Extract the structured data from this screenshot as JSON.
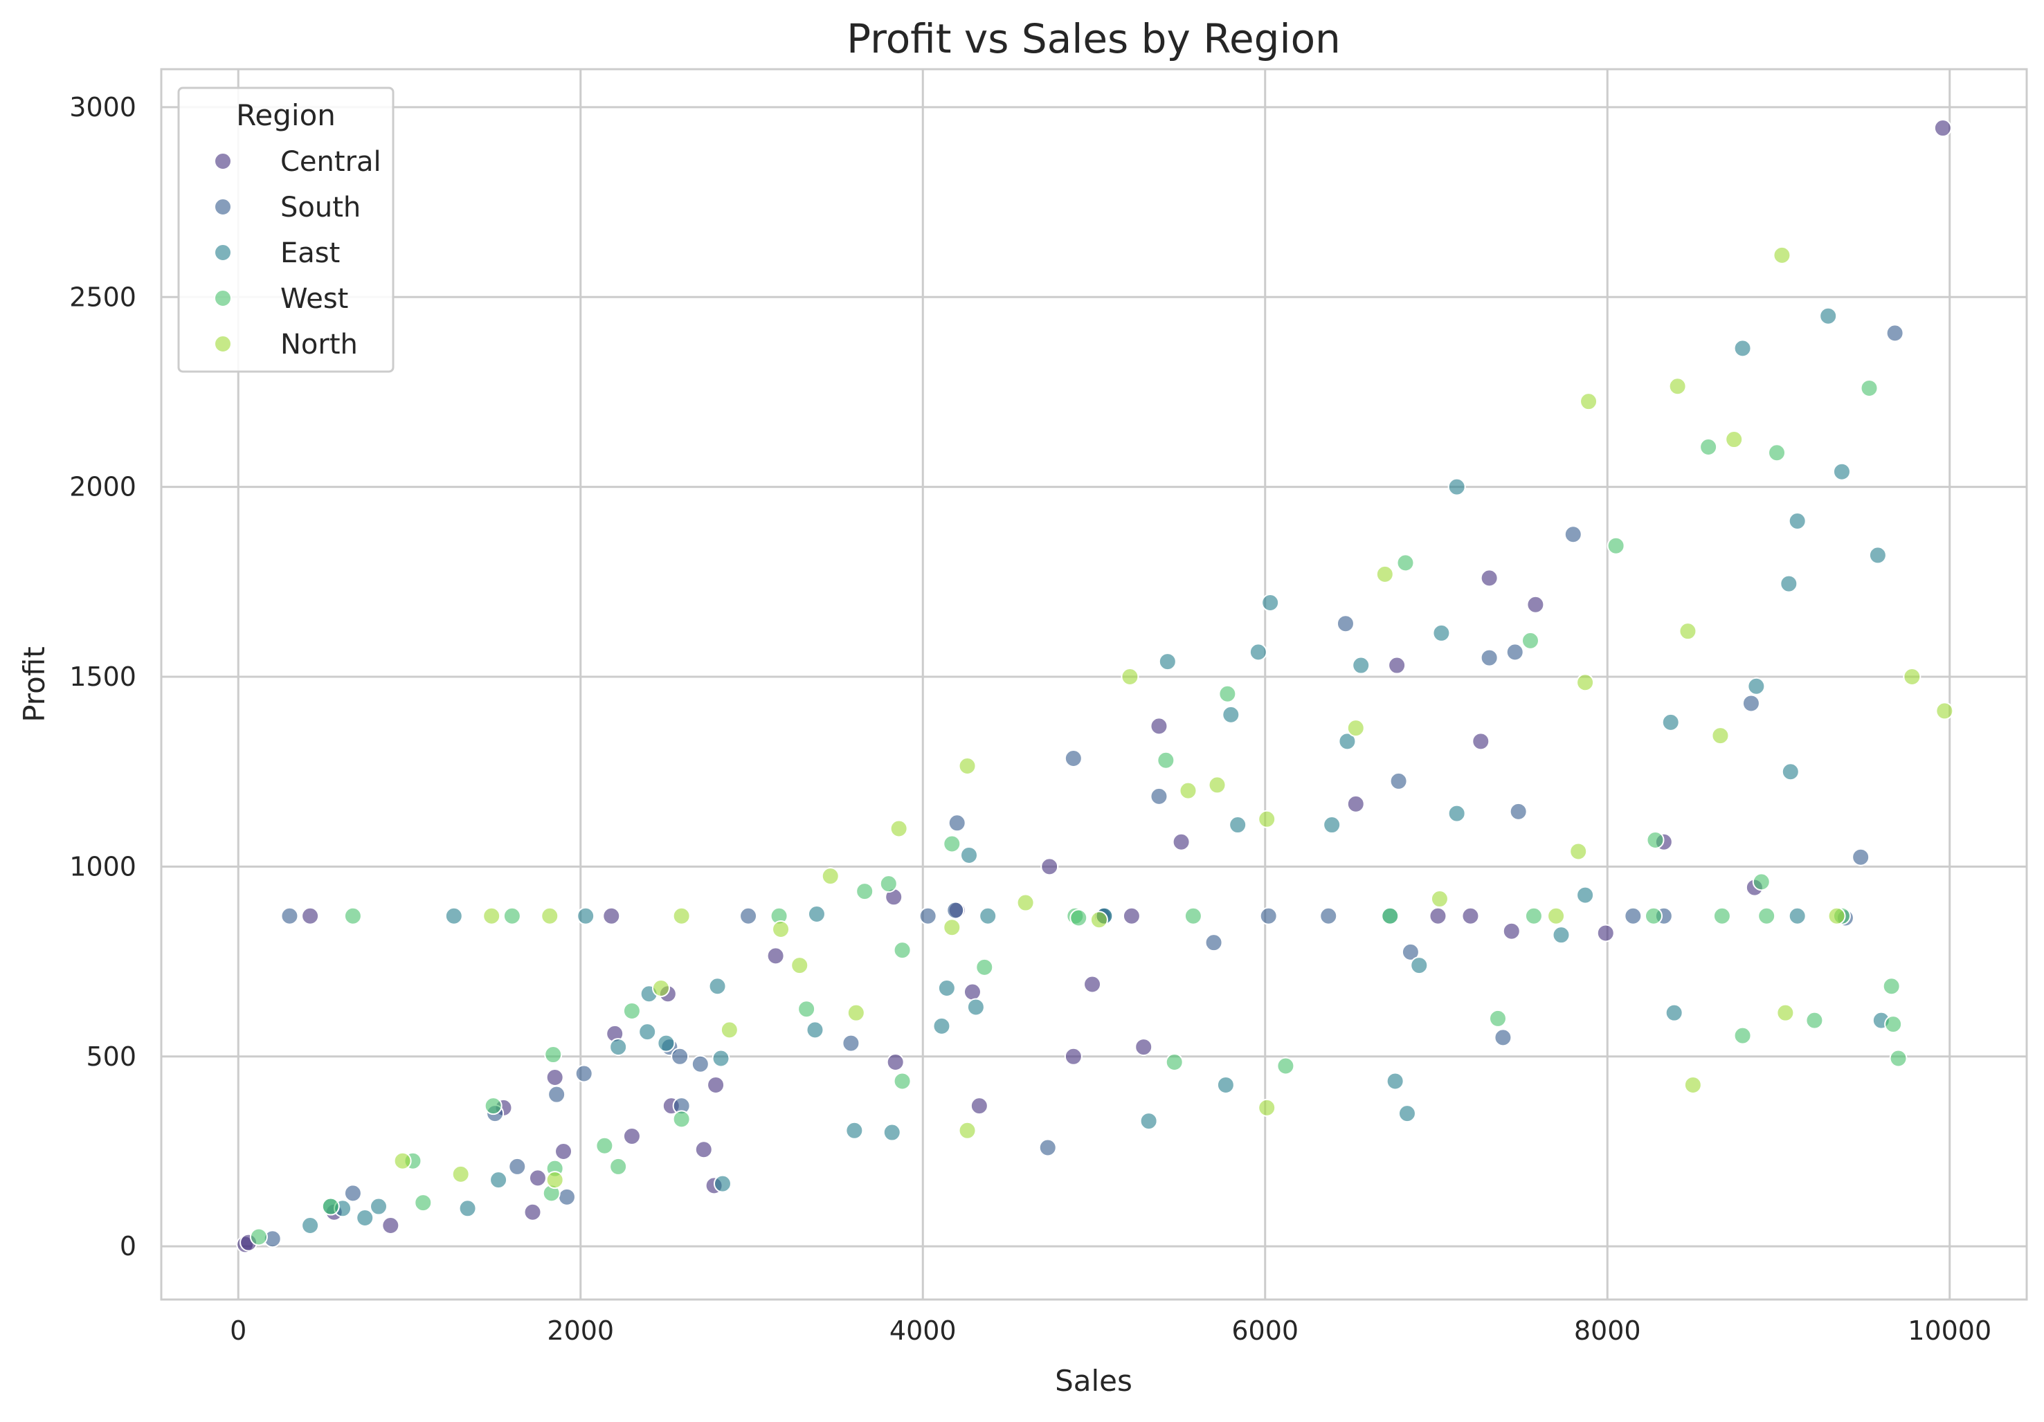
{
  "chart_data": {
    "type": "scatter",
    "title": "Profit vs Sales by Region",
    "xlabel": "Sales",
    "ylabel": "Profit",
    "xlim": [
      -450,
      10450
    ],
    "ylim": [
      -140,
      3100
    ],
    "xticks": [
      0,
      2000,
      4000,
      6000,
      8000,
      10000
    ],
    "yticks": [
      0,
      500,
      1000,
      1500,
      2000,
      2500,
      3000
    ],
    "grid": true,
    "legend": {
      "title": "Region",
      "placement": "top-left"
    },
    "series": [
      {
        "name": "Central",
        "color": "#46327e",
        "points": [
          [
            40,
            5
          ],
          [
            60,
            10
          ],
          [
            420,
            870
          ],
          [
            560,
            90
          ],
          [
            890,
            55
          ],
          [
            1550,
            365
          ],
          [
            1750,
            180
          ],
          [
            1720,
            90
          ],
          [
            1850,
            445
          ],
          [
            1900,
            250
          ],
          [
            2180,
            870
          ],
          [
            2200,
            560
          ],
          [
            2300,
            290
          ],
          [
            2510,
            665
          ],
          [
            2530,
            370
          ],
          [
            2720,
            255
          ],
          [
            2780,
            160
          ],
          [
            2790,
            425
          ],
          [
            3140,
            765
          ],
          [
            3830,
            920
          ],
          [
            3840,
            485
          ],
          [
            4200,
            885
          ],
          [
            4290,
            670
          ],
          [
            4330,
            370
          ],
          [
            4740,
            1000
          ],
          [
            4880,
            500
          ],
          [
            4990,
            690
          ],
          [
            5050,
            870
          ],
          [
            5220,
            870
          ],
          [
            5290,
            525
          ],
          [
            5380,
            1370
          ],
          [
            5510,
            1065
          ],
          [
            6530,
            1165
          ],
          [
            6770,
            1530
          ],
          [
            7010,
            870
          ],
          [
            7200,
            870
          ],
          [
            7260,
            1330
          ],
          [
            7310,
            1760
          ],
          [
            7440,
            830
          ],
          [
            7580,
            1690
          ],
          [
            7990,
            825
          ],
          [
            8330,
            1065
          ],
          [
            8860,
            945
          ],
          [
            9960,
            2945
          ]
        ]
      },
      {
        "name": "South",
        "color": "#365c8d",
        "points": [
          [
            200,
            20
          ],
          [
            300,
            870
          ],
          [
            670,
            140
          ],
          [
            1500,
            350
          ],
          [
            1630,
            210
          ],
          [
            1860,
            400
          ],
          [
            1920,
            130
          ],
          [
            2020,
            455
          ],
          [
            2520,
            525
          ],
          [
            2580,
            500
          ],
          [
            2590,
            370
          ],
          [
            2700,
            480
          ],
          [
            2980,
            870
          ],
          [
            3580,
            535
          ],
          [
            4030,
            870
          ],
          [
            4190,
            885
          ],
          [
            4200,
            1115
          ],
          [
            4730,
            260
          ],
          [
            4880,
            1285
          ],
          [
            5060,
            870
          ],
          [
            5380,
            1185
          ],
          [
            5700,
            800
          ],
          [
            6020,
            870
          ],
          [
            6370,
            870
          ],
          [
            6470,
            1640
          ],
          [
            6780,
            1225
          ],
          [
            6850,
            775
          ],
          [
            7310,
            1550
          ],
          [
            7390,
            550
          ],
          [
            7460,
            1565
          ],
          [
            7480,
            1145
          ],
          [
            7800,
            1875
          ],
          [
            8150,
            870
          ],
          [
            8330,
            870
          ],
          [
            8840,
            1430
          ],
          [
            9390,
            865
          ],
          [
            9680,
            2405
          ],
          [
            9480,
            1025
          ]
        ]
      },
      {
        "name": "East",
        "color": "#277f8e",
        "points": [
          [
            420,
            55
          ],
          [
            540,
            105
          ],
          [
            610,
            100
          ],
          [
            740,
            75
          ],
          [
            820,
            105
          ],
          [
            1260,
            870
          ],
          [
            1340,
            100
          ],
          [
            1520,
            175
          ],
          [
            2030,
            870
          ],
          [
            2220,
            525
          ],
          [
            2390,
            565
          ],
          [
            2400,
            665
          ],
          [
            2500,
            535
          ],
          [
            2800,
            685
          ],
          [
            2820,
            495
          ],
          [
            2830,
            165
          ],
          [
            3370,
            570
          ],
          [
            3380,
            875
          ],
          [
            3600,
            305
          ],
          [
            3820,
            300
          ],
          [
            4110,
            580
          ],
          [
            4140,
            680
          ],
          [
            4270,
            1030
          ],
          [
            4310,
            630
          ],
          [
            4380,
            870
          ],
          [
            5060,
            870
          ],
          [
            5320,
            330
          ],
          [
            5430,
            1540
          ],
          [
            5770,
            425
          ],
          [
            5800,
            1400
          ],
          [
            5840,
            1110
          ],
          [
            5960,
            1565
          ],
          [
            6030,
            1695
          ],
          [
            6390,
            1110
          ],
          [
            6480,
            1330
          ],
          [
            6560,
            1530
          ],
          [
            6730,
            870
          ],
          [
            6760,
            435
          ],
          [
            6830,
            350
          ],
          [
            6900,
            740
          ],
          [
            7030,
            1615
          ],
          [
            7120,
            2000
          ],
          [
            7120,
            1140
          ],
          [
            7730,
            820
          ],
          [
            7870,
            925
          ],
          [
            8370,
            1380
          ],
          [
            8390,
            615
          ],
          [
            8790,
            2365
          ],
          [
            8870,
            1475
          ],
          [
            9070,
            1250
          ],
          [
            9060,
            1745
          ],
          [
            9110,
            1910
          ],
          [
            9110,
            870
          ],
          [
            9290,
            2450
          ],
          [
            9370,
            2040
          ],
          [
            9580,
            1820
          ],
          [
            9600,
            595
          ]
        ]
      },
      {
        "name": "West",
        "color": "#4ac16d",
        "points": [
          [
            120,
            25
          ],
          [
            540,
            105
          ],
          [
            670,
            870
          ],
          [
            1020,
            225
          ],
          [
            1080,
            115
          ],
          [
            1490,
            370
          ],
          [
            1600,
            870
          ],
          [
            1830,
            140
          ],
          [
            1840,
            505
          ],
          [
            1850,
            205
          ],
          [
            2140,
            265
          ],
          [
            2220,
            210
          ],
          [
            2300,
            620
          ],
          [
            2590,
            335
          ],
          [
            3160,
            870
          ],
          [
            3320,
            625
          ],
          [
            3660,
            935
          ],
          [
            3800,
            955
          ],
          [
            3880,
            780
          ],
          [
            3880,
            435
          ],
          [
            4170,
            1060
          ],
          [
            4360,
            735
          ],
          [
            4890,
            870
          ],
          [
            4910,
            865
          ],
          [
            5420,
            1280
          ],
          [
            5470,
            485
          ],
          [
            5580,
            870
          ],
          [
            5780,
            1455
          ],
          [
            6120,
            475
          ],
          [
            6730,
            870
          ],
          [
            6820,
            1800
          ],
          [
            7360,
            600
          ],
          [
            7550,
            1595
          ],
          [
            7570,
            870
          ],
          [
            8050,
            1845
          ],
          [
            8280,
            1070
          ],
          [
            8270,
            870
          ],
          [
            8590,
            2105
          ],
          [
            8670,
            870
          ],
          [
            8790,
            555
          ],
          [
            8900,
            960
          ],
          [
            8930,
            870
          ],
          [
            8990,
            2090
          ],
          [
            9210,
            595
          ],
          [
            9370,
            870
          ],
          [
            9530,
            2260
          ],
          [
            9660,
            685
          ],
          [
            9670,
            585
          ],
          [
            9700,
            495
          ]
        ]
      },
      {
        "name": "North",
        "color": "#a0da39",
        "points": [
          [
            960,
            225
          ],
          [
            1300,
            190
          ],
          [
            1480,
            870
          ],
          [
            1820,
            870
          ],
          [
            1850,
            175
          ],
          [
            2470,
            680
          ],
          [
            2590,
            870
          ],
          [
            2870,
            570
          ],
          [
            3170,
            835
          ],
          [
            3280,
            740
          ],
          [
            3460,
            975
          ],
          [
            3610,
            615
          ],
          [
            3860,
            1100
          ],
          [
            4170,
            840
          ],
          [
            4260,
            1265
          ],
          [
            4260,
            305
          ],
          [
            4600,
            905
          ],
          [
            5030,
            860
          ],
          [
            5210,
            1500
          ],
          [
            5550,
            1200
          ],
          [
            5720,
            1215
          ],
          [
            6010,
            1125
          ],
          [
            6010,
            365
          ],
          [
            6530,
            1365
          ],
          [
            6700,
            1770
          ],
          [
            7020,
            915
          ],
          [
            7700,
            870
          ],
          [
            7830,
            1040
          ],
          [
            7870,
            1485
          ],
          [
            7890,
            2225
          ],
          [
            8410,
            2265
          ],
          [
            8470,
            1620
          ],
          [
            8500,
            425
          ],
          [
            8660,
            1345
          ],
          [
            8740,
            2125
          ],
          [
            9020,
            2610
          ],
          [
            9040,
            615
          ],
          [
            9340,
            870
          ],
          [
            9780,
            1500
          ],
          [
            9970,
            1410
          ]
        ]
      }
    ]
  }
}
